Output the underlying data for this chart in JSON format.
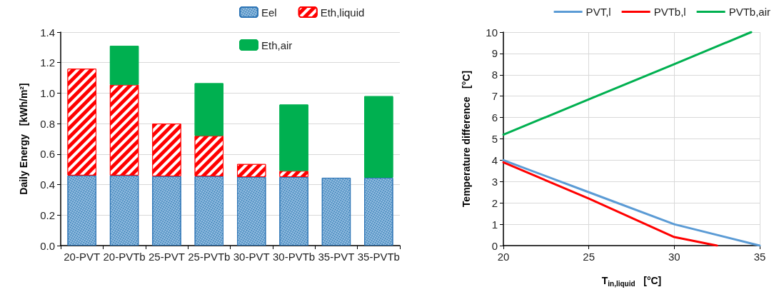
{
  "chart_data": [
    {
      "type": "bar",
      "stacked": true,
      "ylabel": "Daily Energy   [kWh/m²]",
      "categories": [
        "20-PVT",
        "20-PVTb",
        "25-PVT",
        "25-PVTb",
        "30-PVT",
        "30-PVTb",
        "35-PVT",
        "35-PVTb"
      ],
      "series": [
        {
          "name": "Eel",
          "color": "#9dc3e6",
          "values": [
            0.46,
            0.46,
            0.455,
            0.455,
            0.45,
            0.45,
            0.445,
            0.445
          ]
        },
        {
          "name": "Eth,liquid",
          "color": "#ff0000",
          "values": [
            0.7,
            0.595,
            0.345,
            0.265,
            0.085,
            0.04,
            null,
            null
          ]
        },
        {
          "name": "Eth,air",
          "color": "#00b050",
          "values": [
            null,
            0.255,
            null,
            0.345,
            null,
            0.435,
            null,
            0.535
          ]
        }
      ],
      "ylim": [
        0,
        1.4
      ],
      "yticks": [
        {
          "value": 0,
          "label": "0.0"
        },
        {
          "value": 0.2,
          "label": "0.2"
        },
        {
          "value": 0.4,
          "label": "0.4"
        },
        {
          "value": 0.6,
          "label": "0.6"
        },
        {
          "value": 0.8,
          "label": "0.8"
        },
        {
          "value": 1.0,
          "label": "1.0"
        },
        {
          "value": 1.2,
          "label": "1.2"
        },
        {
          "value": 1.4,
          "label": "1.4"
        }
      ],
      "grid": "y",
      "legend": "top"
    },
    {
      "type": "line",
      "xlabel": "T$_{in,liquid}$   [°C]",
      "ylabel": "Temperature difference   [°C]",
      "series": [
        {
          "name": "PVT,l",
          "color": "#5b9bd5",
          "x": [
            20,
            25,
            30,
            35
          ],
          "values": [
            4,
            2.5,
            1.0,
            0
          ]
        },
        {
          "name": "PVTb,l",
          "color": "#ff0000",
          "x": [
            20,
            25,
            30,
            32.5
          ],
          "values": [
            3.9,
            2.2,
            0.4,
            0
          ]
        },
        {
          "name": "PVTb,air",
          "color": "#00b050",
          "x": [
            20,
            25,
            30,
            34.5
          ],
          "values": [
            5.2,
            6.85,
            8.5,
            10
          ]
        }
      ],
      "xlim": [
        20,
        35
      ],
      "xticks": [
        20,
        25,
        30,
        35
      ],
      "ylim": [
        0,
        10
      ],
      "yticks": [
        0,
        1,
        2,
        3,
        4,
        5,
        6,
        7,
        8,
        9,
        10
      ],
      "grid": true,
      "legend": "top right",
      "marker": "none",
      "line_style": "solid"
    }
  ]
}
